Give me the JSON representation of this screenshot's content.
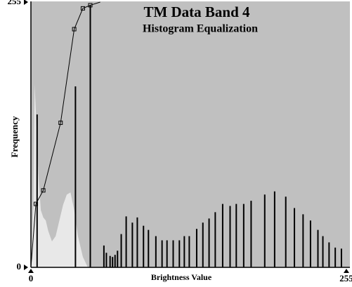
{
  "chart_data": {
    "type": "bar",
    "title": "TM Data Band 4",
    "subtitle": "Histogram Equalization",
    "x_label": "Brightness Value",
    "y_label": "Frequency",
    "xlim": [
      0,
      255
    ],
    "ylim": [
      0,
      255
    ],
    "xticks": [
      0,
      255
    ],
    "yticks": [
      0,
      255
    ],
    "background": "#c0c0c0",
    "series": [
      {
        "type": "area",
        "color": "#e8e8e8",
        "x": [
          0,
          2,
          3,
          4,
          6,
          8,
          10,
          12,
          14,
          17,
          20,
          23,
          26,
          29,
          32,
          35,
          38,
          42,
          46
        ],
        "values": [
          0,
          60,
          176,
          150,
          90,
          55,
          48,
          45,
          35,
          25,
          30,
          45,
          60,
          70,
          72,
          55,
          30,
          10,
          0
        ]
      },
      {
        "type": "bar",
        "color": "#000000",
        "x": [
          5,
          36,
          48,
          59,
          61,
          64,
          66,
          68,
          70,
          73,
          77,
          82,
          86,
          91,
          95,
          101,
          106,
          110,
          115,
          120,
          124,
          128,
          134,
          139,
          144,
          149,
          155,
          161,
          166,
          172,
          178,
          189,
          197,
          206,
          213,
          220,
          226,
          232,
          236,
          241,
          246,
          251
        ],
        "values": [
          147,
          174,
          252,
          21,
          14,
          11,
          10,
          12,
          16,
          32,
          49,
          43,
          48,
          40,
          36,
          30,
          26,
          26,
          26,
          26,
          30,
          30,
          37,
          43,
          47,
          53,
          61,
          59,
          61,
          61,
          64,
          70,
          73,
          68,
          57,
          51,
          45,
          36,
          30,
          24,
          19,
          18
        ]
      },
      {
        "type": "line",
        "color": "#000000",
        "x": [
          0,
          4,
          10,
          24,
          35,
          42,
          48,
          56
        ],
        "values": [
          0,
          61,
          74,
          139,
          229,
          249,
          252,
          255
        ]
      }
    ]
  }
}
